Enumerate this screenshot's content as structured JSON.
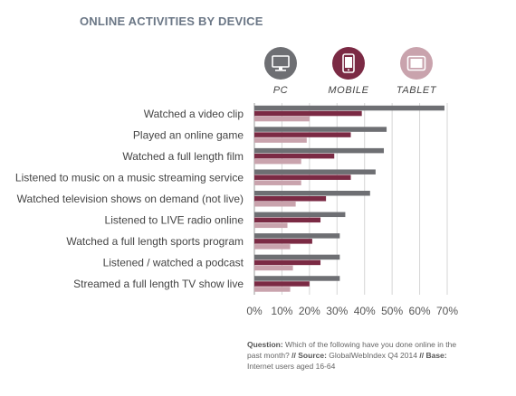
{
  "chart_data": {
    "type": "bar",
    "title": "ONLINE ACTIVITIES BY DEVICE",
    "categories": [
      "Watched a video clip",
      "Played an online game",
      "Watched a full length film",
      "Listened to music on a music streaming service",
      "Watched television shows on demand (not live)",
      "Listened to LIVE radio online",
      "Watched a full length sports program",
      "Listened / watched a podcast",
      "Streamed a full length TV show live"
    ],
    "series": [
      {
        "name": "PC",
        "color": "#6e6f73",
        "icon": "desktop-monitor-icon",
        "values": [
          69,
          48,
          47,
          44,
          42,
          33,
          31,
          31,
          31
        ]
      },
      {
        "name": "MOBILE",
        "color": "#7b2a44",
        "icon": "smartphone-icon",
        "values": [
          39,
          35,
          29,
          35,
          26,
          24,
          21,
          24,
          20
        ]
      },
      {
        "name": "TABLET",
        "color": "#c9a3ad",
        "icon": "tablet-icon",
        "values": [
          20,
          19,
          17,
          17,
          15,
          12,
          13,
          14,
          13
        ]
      }
    ],
    "xticks": [
      "0%",
      "10%",
      "20%",
      "30%",
      "40%",
      "50%",
      "60%",
      "70%"
    ],
    "xlim": [
      0,
      70
    ],
    "grid": true,
    "legend_position": "top"
  },
  "footnote": {
    "question_label": "Question:",
    "question_text": "Which of the following have you done online in the past month?",
    "sep1": "//",
    "source_label": "Source:",
    "source_text": "GlobalWebIndex Q4 2014",
    "sep2": "//",
    "base_label": "Base:",
    "base_text": "Internet users aged 16-64"
  }
}
